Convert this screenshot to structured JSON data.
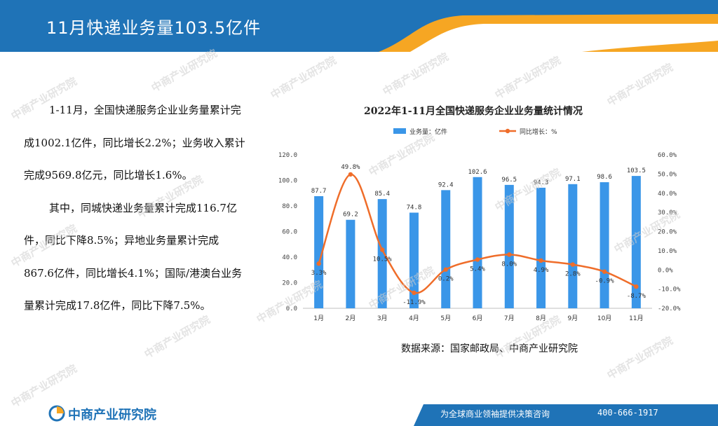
{
  "header": {
    "title": "11月快递业务量103.5亿件"
  },
  "article": {
    "paragraphs": [
      "1-11月，全国快递服务企业业务量累计完成1002.1亿件，同比增长2.2%；业务收入累计完成9569.8亿元，同比增长1.6%。",
      "其中，同城快递业务量累计完成116.7亿件，同比下降8.5%；异地业务量累计完成867.6亿件，同比增长4.1%；国际/港澳台业务量累计完成17.8亿件，同比下降7.5%。"
    ]
  },
  "chart_data": {
    "type": "bar",
    "title": "2022年1-11月全国快递服务企业业务量统计情况",
    "categories": [
      "1月",
      "2月",
      "3月",
      "4月",
      "5月",
      "6月",
      "7月",
      "8月",
      "9月",
      "10月",
      "11月"
    ],
    "series": [
      {
        "name": "业务量：亿件",
        "type": "bar",
        "axis": "left",
        "values": [
          87.7,
          69.2,
          85.4,
          74.8,
          92.4,
          102.6,
          96.5,
          94.3,
          97.1,
          98.6,
          103.5
        ],
        "labels": [
          "87.7",
          "69.2",
          "85.4",
          "74.8",
          "92.4",
          "102.6",
          "96.5",
          "94.3",
          "97.1",
          "98.6",
          "103.5"
        ],
        "color": "#3a96e8"
      },
      {
        "name": "同比增长：%",
        "type": "line",
        "axis": "right",
        "values": [
          3.3,
          49.8,
          10.5,
          -11.9,
          0.2,
          5.4,
          8.0,
          4.9,
          2.8,
          -0.9,
          -8.7
        ],
        "labels": [
          "3.3%",
          "49.8%",
          "10.5%",
          "-11.9%",
          "0.2%",
          "5.4%",
          "8.0%",
          "4.9%",
          "2.8%",
          "-0.9%",
          "-8.7%"
        ],
        "color": "#ef6d2a",
        "smooth": true
      }
    ],
    "y_left": {
      "ylim": [
        0,
        120
      ],
      "ticks": [
        0,
        20,
        40,
        60,
        80,
        100,
        120
      ],
      "tick_labels": [
        "0.0",
        "20.0",
        "40.0",
        "60.0",
        "80.0",
        "100.0",
        "120.0"
      ]
    },
    "y_right": {
      "ylim": [
        -20,
        60
      ],
      "ticks": [
        -20,
        -10,
        0,
        10,
        20,
        30,
        40,
        50,
        60
      ],
      "tick_labels": [
        "-20.0%",
        "-10.0%",
        "0.0%",
        "10.0%",
        "20.0%",
        "30.0%",
        "40.0%",
        "50.0%",
        "60.0%"
      ]
    },
    "legend": "top-center",
    "grid": false
  },
  "source": "数据来源：国家邮政局、中商产业研究院",
  "footer": {
    "logo_text": "中商产业研究院",
    "slogan": "为全球商业领袖提供决策咨询",
    "phone": "400-666-1917"
  },
  "watermark": {
    "text": "中商产业研究院"
  },
  "colors": {
    "header_blue": "#1f73b7",
    "header_orange": "#f6a623",
    "bar_blue": "#3a96e8",
    "line_orange": "#ef6d2a"
  }
}
